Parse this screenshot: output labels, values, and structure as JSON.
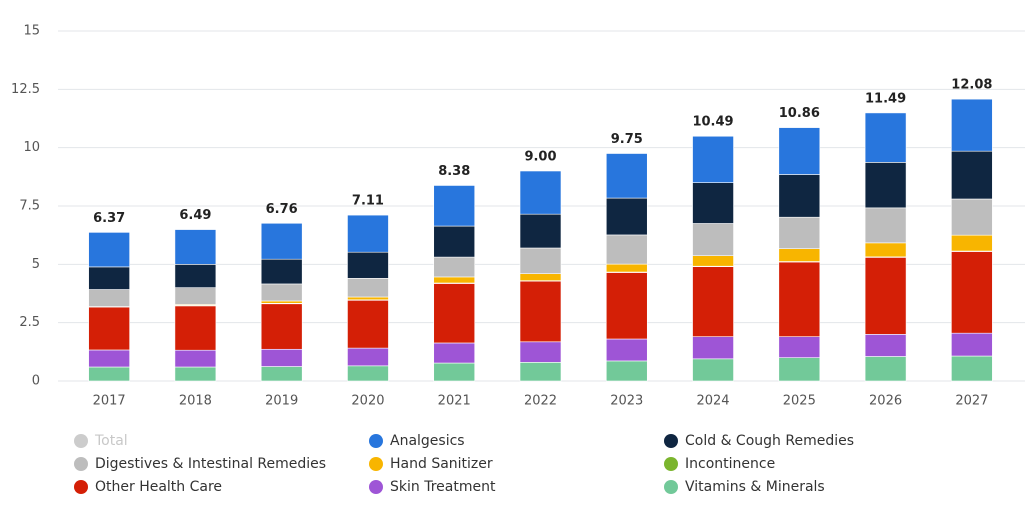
{
  "chart_data": {
    "type": "stacked-bar",
    "categories": [
      "2017",
      "2018",
      "2019",
      "2020",
      "2021",
      "2022",
      "2023",
      "2024",
      "2025",
      "2026",
      "2027"
    ],
    "ylim": [
      0,
      15
    ],
    "yticks": [
      0,
      2.5,
      5,
      7.5,
      10,
      12.5,
      15
    ],
    "grid": true,
    "series": [
      {
        "name": "Total",
        "color": "#cccccc",
        "hidden": true,
        "values": [
          6.37,
          6.49,
          6.76,
          7.11,
          8.38,
          9.0,
          9.75,
          10.49,
          10.86,
          11.49,
          12.08
        ],
        "value_labels": [
          "6.37",
          "6.49",
          "6.76",
          "7.11",
          "8.38",
          "9.00",
          "9.75",
          "10.49",
          "10.86",
          "11.49",
          "12.08"
        ]
      },
      {
        "name": "Analgesics",
        "color": "#2876dd",
        "values": [
          1.48,
          1.49,
          1.54,
          1.59,
          1.74,
          1.85,
          1.91,
          1.99,
          2.01,
          2.12,
          2.23
        ]
      },
      {
        "name": "Cold & Cough Remedies",
        "color": "#0f2641",
        "values": [
          0.97,
          1.0,
          1.06,
          1.12,
          1.33,
          1.45,
          1.58,
          1.75,
          1.83,
          1.95,
          2.05
        ]
      },
      {
        "name": "Digestives & Intestinal Remedies",
        "color": "#bdbdbd",
        "values": [
          0.73,
          0.72,
          0.73,
          0.8,
          0.85,
          1.1,
          1.25,
          1.38,
          1.35,
          1.5,
          1.55
        ]
      },
      {
        "name": "Hand Sanitizer",
        "color": "#f8b500",
        "values": [
          0.0,
          0.04,
          0.1,
          0.12,
          0.26,
          0.3,
          0.34,
          0.45,
          0.55,
          0.6,
          0.68
        ]
      },
      {
        "name": "Incontinence",
        "color": "#7bb52e",
        "values": [
          0.02,
          0.02,
          0.02,
          0.02,
          0.02,
          0.02,
          0.02,
          0.02,
          0.02,
          0.02,
          0.02
        ]
      },
      {
        "name": "Other Health Care",
        "color": "#d41f06",
        "values": [
          1.84,
          1.9,
          1.95,
          2.05,
          2.55,
          2.6,
          2.85,
          3.0,
          3.2,
          3.3,
          3.5
        ]
      },
      {
        "name": "Skin Treatment",
        "color": "#9e55d6",
        "values": [
          0.73,
          0.72,
          0.74,
          0.76,
          0.86,
          0.88,
          0.94,
          0.95,
          0.9,
          0.95,
          0.98
        ]
      },
      {
        "name": "Vitamins & Minerals",
        "color": "#72c999",
        "values": [
          0.6,
          0.6,
          0.62,
          0.65,
          0.77,
          0.8,
          0.86,
          0.95,
          1.0,
          1.05,
          1.07
        ]
      }
    ]
  }
}
